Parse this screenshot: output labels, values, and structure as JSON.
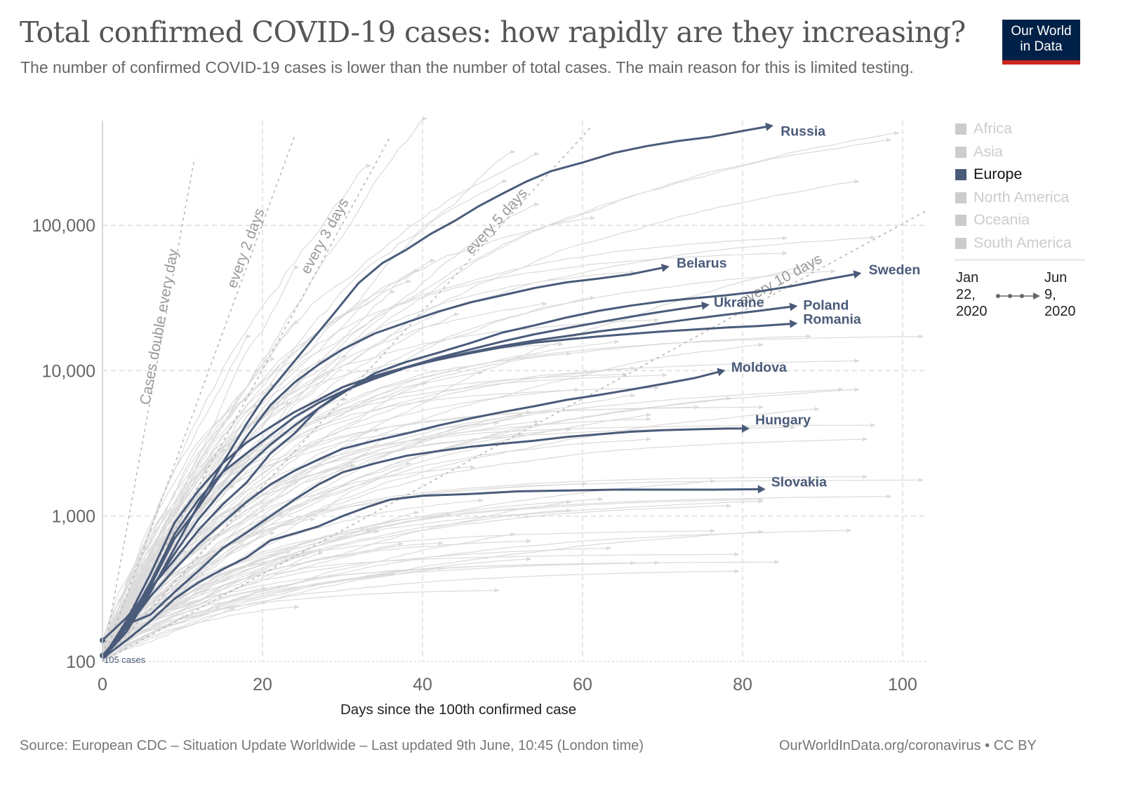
{
  "header": {
    "title": "Total confirmed COVID-19 cases: how rapidly are they increasing?",
    "subtitle": "The number of confirmed COVID-19 cases is lower than the number of total cases. The main reason for this is limited testing.",
    "logo_line1": "Our World",
    "logo_line2": "in Data"
  },
  "legend": {
    "items": [
      {
        "label": "Africa",
        "active": false
      },
      {
        "label": "Asia",
        "active": false
      },
      {
        "label": "Europe",
        "active": true
      },
      {
        "label": "North America",
        "active": false
      },
      {
        "label": "Oceania",
        "active": false
      },
      {
        "label": "South America",
        "active": false
      }
    ],
    "timeline_start": [
      "Jan",
      "22,",
      "2020"
    ],
    "timeline_end": [
      "Jun",
      "9,",
      "2020"
    ]
  },
  "footer": {
    "source": "Source: European CDC – Situation Update Worldwide – Last updated 9th June, 10:45 (London time)",
    "credit": "OurWorldInData.org/coronavirus • CC BY"
  },
  "colors": {
    "highlight": "#4a5b7a",
    "background_lines": "#dadada",
    "guides": "#b8b8b8",
    "logo_bg": "#002147",
    "logo_bar": "#ce261e",
    "legend_inactive": "#cccccc"
  },
  "chart_data": {
    "type": "line",
    "title": "Total confirmed COVID-19 cases: how rapidly are they increasing?",
    "xlabel": "Days since the 100th confirmed case",
    "ylabel": "",
    "y_scale": "log",
    "xlim": [
      0,
      103
    ],
    "ylim": [
      100,
      600000
    ],
    "x_ticks": [
      0,
      20,
      40,
      60,
      80,
      100
    ],
    "x_tick_labels": [
      "0",
      "20",
      "40",
      "60",
      "80",
      "100"
    ],
    "y_ticks": [
      100,
      1000,
      10000,
      100000
    ],
    "y_tick_labels": [
      "100",
      "1,000",
      "10,000",
      "100,000"
    ],
    "grid": true,
    "start_annotation": "105 cases",
    "doubling_guides": [
      {
        "label": "Cases double every day",
        "days": 1,
        "end_day": 11.5
      },
      {
        "label": "every 2 days",
        "days": 2,
        "end_day": 24
      },
      {
        "label": "every 3 days",
        "days": 3,
        "end_day": 36
      },
      {
        "label": "every 5 days",
        "days": 5,
        "end_day": 61
      },
      {
        "label": "every 10 days",
        "days": 10,
        "end_day": 103
      }
    ],
    "highlighted_series": [
      {
        "name": "Russia",
        "points": [
          [
            0,
            110
          ],
          [
            3,
            160
          ],
          [
            6,
            300
          ],
          [
            9,
            600
          ],
          [
            12,
            1200
          ],
          [
            15,
            2300
          ],
          [
            18,
            4300
          ],
          [
            20,
            6300
          ],
          [
            23,
            10000
          ],
          [
            26,
            15800
          ],
          [
            29,
            25000
          ],
          [
            32,
            40000
          ],
          [
            35,
            55000
          ],
          [
            38,
            68000
          ],
          [
            41,
            87000
          ],
          [
            44,
            107000
          ],
          [
            47,
            135000
          ],
          [
            50,
            165000
          ],
          [
            53,
            200000
          ],
          [
            56,
            235000
          ],
          [
            60,
            270000
          ],
          [
            64,
            315000
          ],
          [
            68,
            350000
          ],
          [
            72,
            380000
          ],
          [
            76,
            405000
          ],
          [
            80,
            445000
          ],
          [
            83,
            476000
          ]
        ]
      },
      {
        "name": "Belarus",
        "points": [
          [
            0,
            110
          ],
          [
            3,
            170
          ],
          [
            6,
            330
          ],
          [
            9,
            700
          ],
          [
            12,
            1150
          ],
          [
            15,
            2000
          ],
          [
            18,
            3500
          ],
          [
            21,
            5800
          ],
          [
            24,
            8300
          ],
          [
            27,
            11000
          ],
          [
            30,
            14000
          ],
          [
            34,
            18000
          ],
          [
            38,
            21500
          ],
          [
            42,
            25500
          ],
          [
            46,
            29500
          ],
          [
            50,
            33000
          ],
          [
            54,
            37000
          ],
          [
            58,
            40500
          ],
          [
            62,
            43000
          ],
          [
            66,
            46000
          ],
          [
            70,
            51000
          ]
        ]
      },
      {
        "name": "Sweden",
        "points": [
          [
            0,
            140
          ],
          [
            3,
            200
          ],
          [
            6,
            320
          ],
          [
            9,
            500
          ],
          [
            12,
            800
          ],
          [
            15,
            1200
          ],
          [
            18,
            1700
          ],
          [
            21,
            2700
          ],
          [
            24,
            3700
          ],
          [
            27,
            5500
          ],
          [
            30,
            7000
          ],
          [
            34,
            9600
          ],
          [
            38,
            11500
          ],
          [
            42,
            13300
          ],
          [
            46,
            15500
          ],
          [
            50,
            18300
          ],
          [
            54,
            20500
          ],
          [
            58,
            23200
          ],
          [
            62,
            25800
          ],
          [
            66,
            28000
          ],
          [
            70,
            30000
          ],
          [
            74,
            31500
          ],
          [
            78,
            33000
          ],
          [
            82,
            35000
          ],
          [
            86,
            38000
          ],
          [
            90,
            42000
          ],
          [
            94,
            46000
          ]
        ]
      },
      {
        "name": "Ukraine",
        "points": [
          [
            0,
            105
          ],
          [
            3,
            160
          ],
          [
            6,
            310
          ],
          [
            9,
            550
          ],
          [
            12,
            950
          ],
          [
            15,
            1500
          ],
          [
            18,
            2200
          ],
          [
            21,
            3100
          ],
          [
            24,
            4200
          ],
          [
            27,
            5500
          ],
          [
            30,
            7200
          ],
          [
            34,
            9000
          ],
          [
            38,
            10600
          ],
          [
            42,
            12300
          ],
          [
            46,
            14000
          ],
          [
            50,
            15900
          ],
          [
            54,
            17800
          ],
          [
            58,
            19600
          ],
          [
            62,
            21500
          ],
          [
            66,
            23500
          ],
          [
            70,
            25500
          ],
          [
            75,
            28000
          ]
        ]
      },
      {
        "name": "Poland",
        "points": [
          [
            0,
            105
          ],
          [
            3,
            180
          ],
          [
            6,
            350
          ],
          [
            9,
            750
          ],
          [
            12,
            1300
          ],
          [
            15,
            2000
          ],
          [
            18,
            2700
          ],
          [
            21,
            3600
          ],
          [
            24,
            4800
          ],
          [
            27,
            6000
          ],
          [
            30,
            7200
          ],
          [
            34,
            8800
          ],
          [
            38,
            10500
          ],
          [
            42,
            12000
          ],
          [
            46,
            13400
          ],
          [
            50,
            14800
          ],
          [
            54,
            16100
          ],
          [
            58,
            17300
          ],
          [
            62,
            18600
          ],
          [
            66,
            19800
          ],
          [
            70,
            21300
          ],
          [
            74,
            22800
          ],
          [
            78,
            24300
          ],
          [
            82,
            25800
          ],
          [
            86,
            27500
          ]
        ]
      },
      {
        "name": "Romania",
        "points": [
          [
            0,
            105
          ],
          [
            3,
            190
          ],
          [
            6,
            400
          ],
          [
            9,
            900
          ],
          [
            12,
            1500
          ],
          [
            15,
            2300
          ],
          [
            18,
            3200
          ],
          [
            21,
            4100
          ],
          [
            24,
            5200
          ],
          [
            27,
            6300
          ],
          [
            30,
            7700
          ],
          [
            34,
            9200
          ],
          [
            38,
            10600
          ],
          [
            42,
            11900
          ],
          [
            46,
            13200
          ],
          [
            50,
            14500
          ],
          [
            54,
            15600
          ],
          [
            58,
            16400
          ],
          [
            62,
            17200
          ],
          [
            66,
            17900
          ],
          [
            70,
            18600
          ],
          [
            74,
            19200
          ],
          [
            78,
            19800
          ],
          [
            82,
            20300
          ],
          [
            86,
            21000
          ]
        ]
      },
      {
        "name": "Moldova",
        "points": [
          [
            0,
            105
          ],
          [
            3,
            170
          ],
          [
            6,
            280
          ],
          [
            9,
            430
          ],
          [
            12,
            640
          ],
          [
            15,
            900
          ],
          [
            18,
            1250
          ],
          [
            21,
            1650
          ],
          [
            24,
            2050
          ],
          [
            27,
            2450
          ],
          [
            30,
            2900
          ],
          [
            34,
            3300
          ],
          [
            38,
            3700
          ],
          [
            42,
            4200
          ],
          [
            46,
            4700
          ],
          [
            50,
            5200
          ],
          [
            54,
            5700
          ],
          [
            58,
            6300
          ],
          [
            62,
            6800
          ],
          [
            66,
            7400
          ],
          [
            70,
            8100
          ],
          [
            74,
            8900
          ],
          [
            77,
            9800
          ]
        ]
      },
      {
        "name": "Hungary",
        "points": [
          [
            0,
            105
          ],
          [
            3,
            180
          ],
          [
            6,
            210
          ],
          [
            9,
            300
          ],
          [
            12,
            420
          ],
          [
            15,
            600
          ],
          [
            18,
            770
          ],
          [
            21,
            1000
          ],
          [
            24,
            1300
          ],
          [
            27,
            1650
          ],
          [
            30,
            2000
          ],
          [
            34,
            2300
          ],
          [
            38,
            2600
          ],
          [
            42,
            2800
          ],
          [
            46,
            3000
          ],
          [
            50,
            3150
          ],
          [
            54,
            3300
          ],
          [
            58,
            3500
          ],
          [
            62,
            3650
          ],
          [
            66,
            3800
          ],
          [
            70,
            3900
          ],
          [
            74,
            3950
          ],
          [
            78,
            4000
          ],
          [
            80,
            4000
          ]
        ]
      },
      {
        "name": "Slovakia",
        "points": [
          [
            0,
            105
          ],
          [
            3,
            140
          ],
          [
            6,
            190
          ],
          [
            9,
            270
          ],
          [
            12,
            350
          ],
          [
            15,
            430
          ],
          [
            18,
            520
          ],
          [
            21,
            680
          ],
          [
            24,
            760
          ],
          [
            27,
            850
          ],
          [
            30,
            1000
          ],
          [
            33,
            1150
          ],
          [
            36,
            1300
          ],
          [
            40,
            1380
          ],
          [
            46,
            1420
          ],
          [
            52,
            1480
          ],
          [
            58,
            1500
          ],
          [
            64,
            1520
          ],
          [
            70,
            1520
          ],
          [
            76,
            1520
          ],
          [
            82,
            1530
          ]
        ]
      }
    ],
    "background_series_note": "Other countries (non-Europe) shown as faint gray lines"
  }
}
